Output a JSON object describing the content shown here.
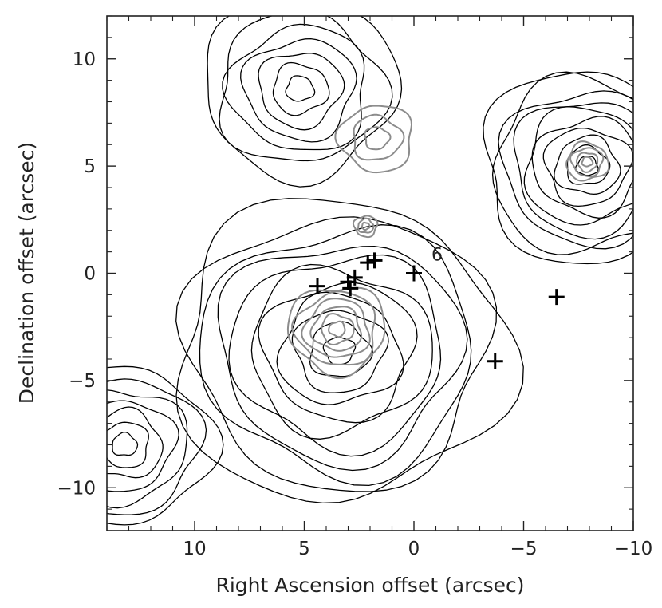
{
  "chart_data": {
    "type": "contour",
    "title": "",
    "xlabel": "Right Ascension offset (arcsec)",
    "ylabel": "Declination offset (arcsec)",
    "xlim": [
      14,
      -10
    ],
    "ylim": [
      -12,
      12
    ],
    "xticks": [
      10,
      5,
      0,
      -5,
      -10
    ],
    "xtick_labels": [
      "10",
      "5",
      "0",
      "−5",
      "−10"
    ],
    "yticks": [
      10,
      5,
      0,
      -5,
      -10
    ],
    "ytick_labels": [
      "10",
      "5",
      "0",
      "−5",
      "−10"
    ],
    "grid": false,
    "legend": "none",
    "series": [
      {
        "color": "#000000",
        "sources": [
          {
            "x": 3.4,
            "y": -3.6,
            "levels": 11,
            "r_max": 7.2
          },
          {
            "x": -7.9,
            "y": 5.0,
            "levels": 10,
            "r_max": 4.6
          },
          {
            "x": 5.2,
            "y": 8.6,
            "levels": 7,
            "r_max": 4.2
          },
          {
            "x": 13.2,
            "y": -8.0,
            "levels": 7,
            "r_max": 3.8
          }
        ]
      },
      {
        "color": "#8c8c8c",
        "sources": [
          {
            "x": 3.5,
            "y": -2.6,
            "levels": 6,
            "r_max": 2.1
          },
          {
            "x": 1.7,
            "y": 6.3,
            "levels": 3,
            "r_max": 1.6
          },
          {
            "x": 2.2,
            "y": 2.2,
            "levels": 3,
            "r_max": 0.5
          },
          {
            "x": -7.9,
            "y": 5.2,
            "levels": 4,
            "r_max": 0.9
          }
        ]
      }
    ],
    "markers": [
      {
        "x": 4.4,
        "y": -0.6
      },
      {
        "x": 3.0,
        "y": -0.4
      },
      {
        "x": 2.9,
        "y": -0.7
      },
      {
        "x": 2.7,
        "y": -0.2
      },
      {
        "x": 2.1,
        "y": 0.5
      },
      {
        "x": 1.8,
        "y": 0.6
      },
      {
        "x": 0.0,
        "y": 0.0
      },
      {
        "x": -3.7,
        "y": -4.1
      },
      {
        "x": -6.5,
        "y": -1.1
      }
    ],
    "annotations": [
      {
        "text": "6",
        "x": -0.8,
        "y": 0.6
      }
    ]
  }
}
